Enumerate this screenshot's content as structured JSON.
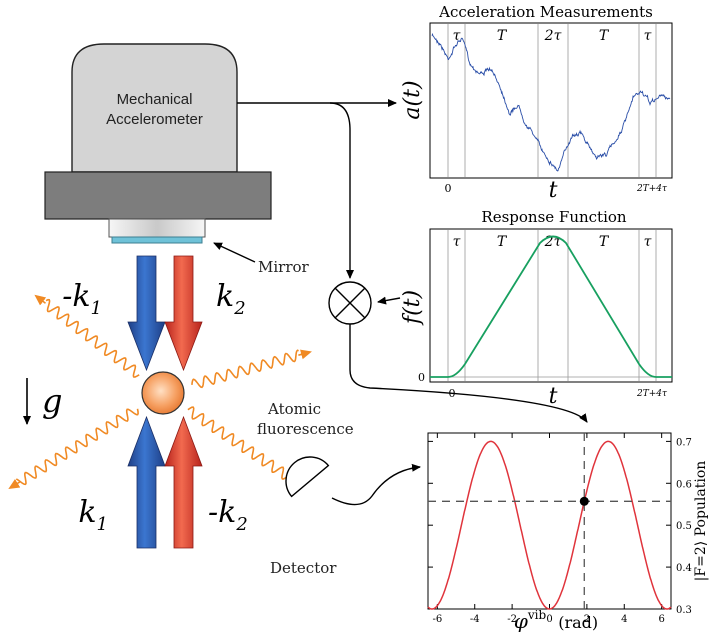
{
  "colors": {
    "blue": "#2456a8",
    "red": "#e2453a",
    "orange": "#f08a24",
    "green": "#18a060",
    "sine": "#e0343c",
    "plotBlue": "#2b4fa8"
  },
  "apparatus": {
    "accel_label_line1": "Mechanical",
    "accel_label_line2": "Accelerometer",
    "mirror_label": "Mirror",
    "beam_left_top": "-k",
    "beam_left_top_sub": "1",
    "beam_right_top": "k",
    "beam_right_top_sub": "2",
    "beam_left_bottom": "k",
    "beam_left_bottom_sub": "1",
    "beam_right_bottom": "-k",
    "beam_right_bottom_sub": "2",
    "gravity": "g",
    "fluorescence_line1": "Atomic",
    "fluorescence_line2": "fluorescence",
    "detector_label": "Detector"
  },
  "accel_plot": {
    "title": "Acceleration Measurements",
    "ylabel": "a(t)",
    "xlabel": "t",
    "segments": [
      "τ",
      "T",
      "2τ",
      "T",
      "τ"
    ],
    "tick_start": "0",
    "tick_end": "2T+4τ"
  },
  "response_plot": {
    "title": "Response Function",
    "ylabel": "f(t)",
    "xlabel": "t",
    "segments": [
      "τ",
      "T",
      "2τ",
      "T",
      "τ"
    ],
    "tick_start": "0",
    "tick_end": "2T+4τ",
    "ytick_zero": "0"
  },
  "chart_data": {
    "type": "line",
    "xlabel": "φvib (rad)",
    "xlabel_main": "φ",
    "xlabel_sup": "vib",
    "xlabel_unit": "(rad)",
    "ylabel": "|F=2⟩ Population",
    "xlim": [
      -6.5,
      6.5
    ],
    "ylim": [
      0.3,
      0.72
    ],
    "xticks": [
      -6,
      -4,
      -2,
      0,
      2,
      4,
      6
    ],
    "yticks": [
      0.3,
      0.4,
      0.5,
      0.6,
      0.7
    ],
    "series": [
      {
        "function": "0.5 - 0.2*cos(phi)",
        "color": "#e0343c"
      }
    ],
    "marker": {
      "x": 1.86,
      "y": 0.557
    }
  }
}
